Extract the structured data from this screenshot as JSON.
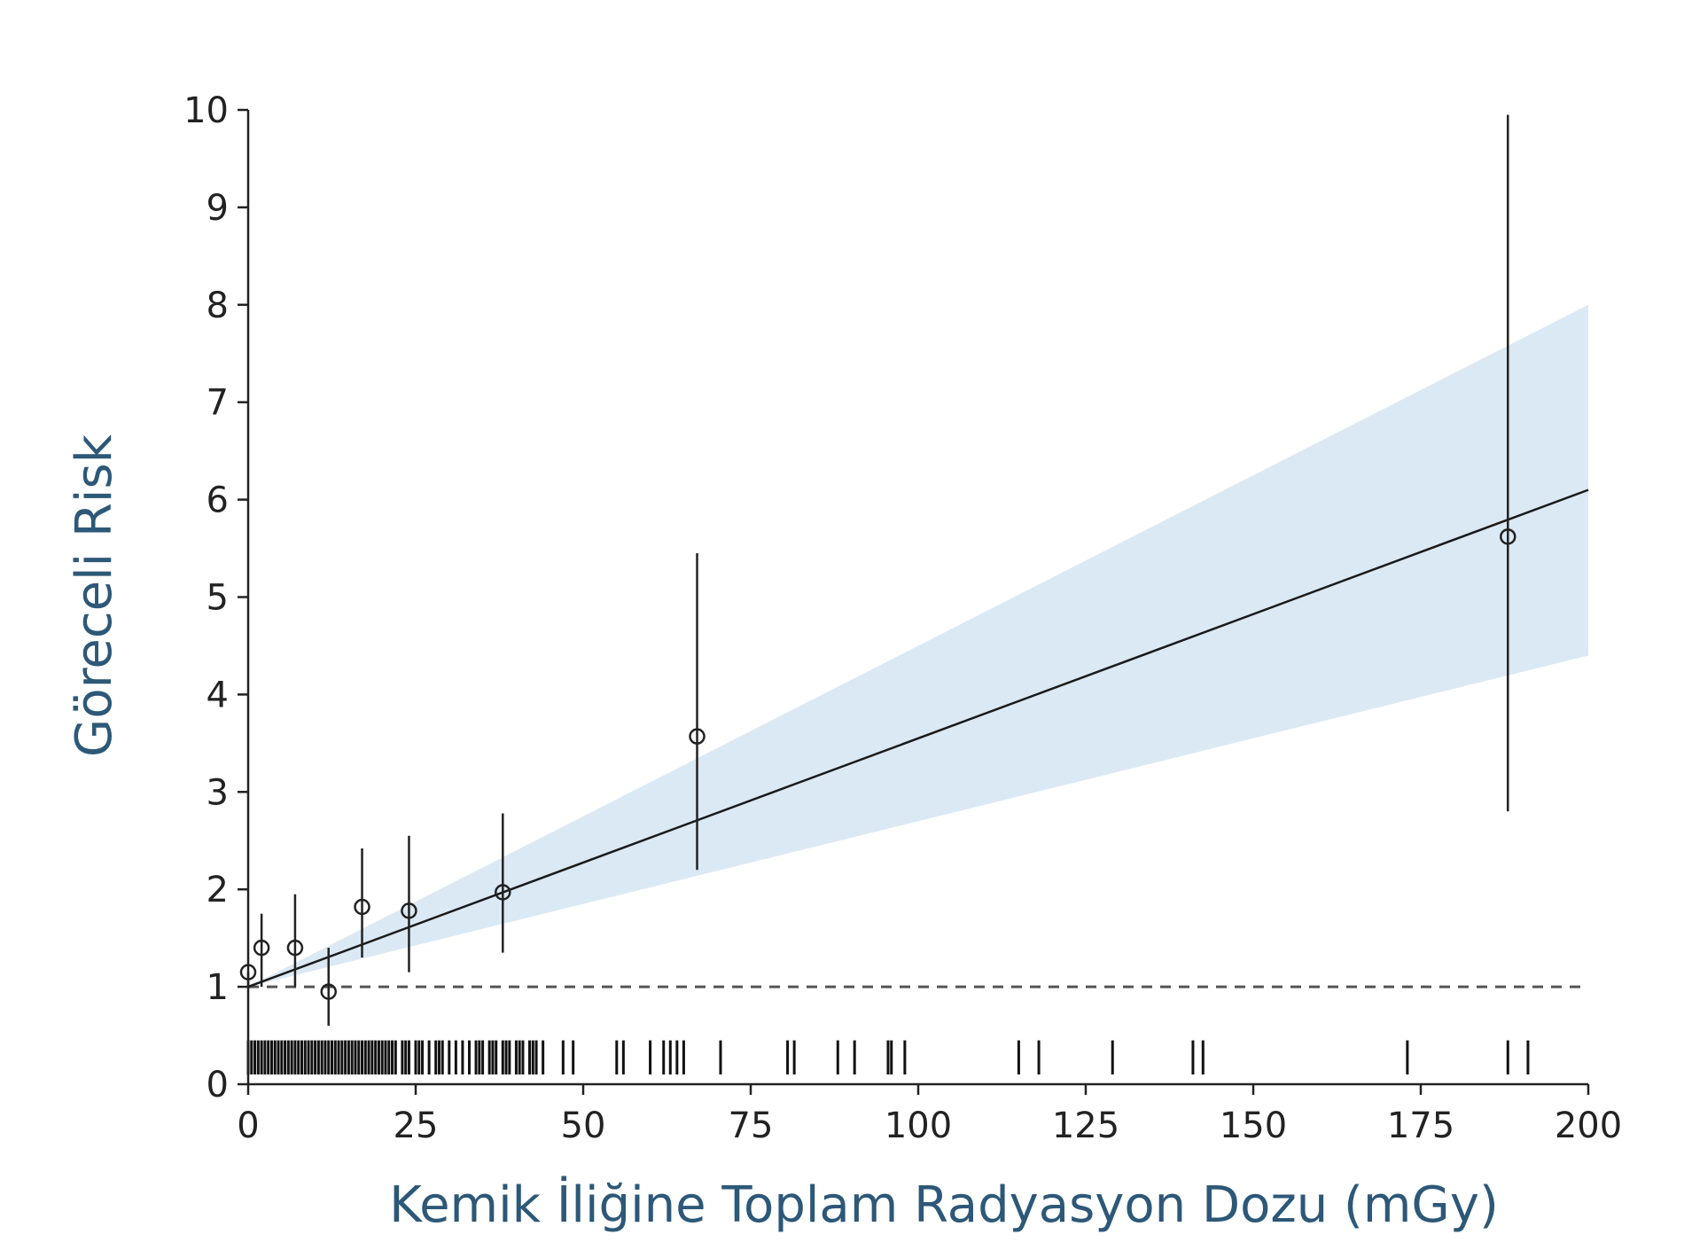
{
  "chart_data": {
    "type": "scatter",
    "title": "",
    "xlabel": "Kemik İliğine Toplam Radyasyon Dozu (mGy)",
    "ylabel": "Göreceli Risk",
    "xlim": [
      0,
      200
    ],
    "ylim": [
      0,
      10
    ],
    "x_ticks": [
      0,
      25,
      50,
      75,
      100,
      125,
      150,
      175,
      200
    ],
    "y_ticks": [
      0,
      1,
      2,
      3,
      4,
      5,
      6,
      7,
      8,
      9,
      10
    ],
    "grid": false,
    "legend": "none",
    "points": [
      {
        "x": 0,
        "y": 1.15,
        "lower": 1.0,
        "upper": 1.15
      },
      {
        "x": 2,
        "y": 1.4,
        "lower": 1.0,
        "upper": 1.75
      },
      {
        "x": 7,
        "y": 1.4,
        "lower": 1.0,
        "upper": 1.95
      },
      {
        "x": 12,
        "y": 0.95,
        "lower": 0.6,
        "upper": 1.4
      },
      {
        "x": 17,
        "y": 1.82,
        "lower": 1.3,
        "upper": 2.42
      },
      {
        "x": 24,
        "y": 1.78,
        "lower": 1.15,
        "upper": 2.55
      },
      {
        "x": 38,
        "y": 1.97,
        "lower": 1.35,
        "upper": 2.78
      },
      {
        "x": 67,
        "y": 3.57,
        "lower": 2.2,
        "upper": 5.45
      },
      {
        "x": 188,
        "y": 5.62,
        "lower": 2.8,
        "upper": 9.95
      }
    ],
    "fit_line": {
      "x": [
        0,
        200
      ],
      "y": [
        1.0,
        6.1
      ]
    },
    "confidence_band": {
      "x": [
        0,
        200
      ],
      "lower": [
        1.0,
        4.4
      ],
      "upper": [
        1.0,
        8.0
      ]
    },
    "reference_line": {
      "y": 1.0,
      "style": "dashed"
    },
    "rug_x": [
      0,
      0.5,
      1,
      1.5,
      2,
      2.5,
      3,
      3.5,
      4,
      4.5,
      5,
      5.5,
      6,
      6.5,
      7,
      7.5,
      8,
      8.5,
      9,
      9.5,
      10,
      10.5,
      11,
      11.5,
      12,
      12.5,
      13,
      13.5,
      14,
      14.5,
      15,
      15.5,
      16,
      16.5,
      17,
      17.5,
      18,
      18.5,
      19,
      19.5,
      20,
      20.5,
      21,
      21.5,
      22,
      23,
      23.5,
      24,
      25,
      25.5,
      26,
      27,
      28,
      28.5,
      29,
      30,
      31,
      32,
      33,
      34,
      34.5,
      35,
      36,
      36.5,
      37,
      38,
      38.5,
      39,
      40,
      40.5,
      41,
      42,
      42.5,
      43,
      44,
      47,
      48.5,
      55,
      56,
      60,
      62,
      63,
      64,
      65,
      70.5,
      80.5,
      81.5,
      88,
      90.5,
      95.5,
      96,
      98,
      115,
      118,
      129,
      141,
      142.5,
      173,
      188,
      191
    ],
    "colors": {
      "band": "#dbe9f4",
      "line": "#1a1a1a",
      "axis_title": "#2d5878",
      "reference": "#555555"
    }
  }
}
